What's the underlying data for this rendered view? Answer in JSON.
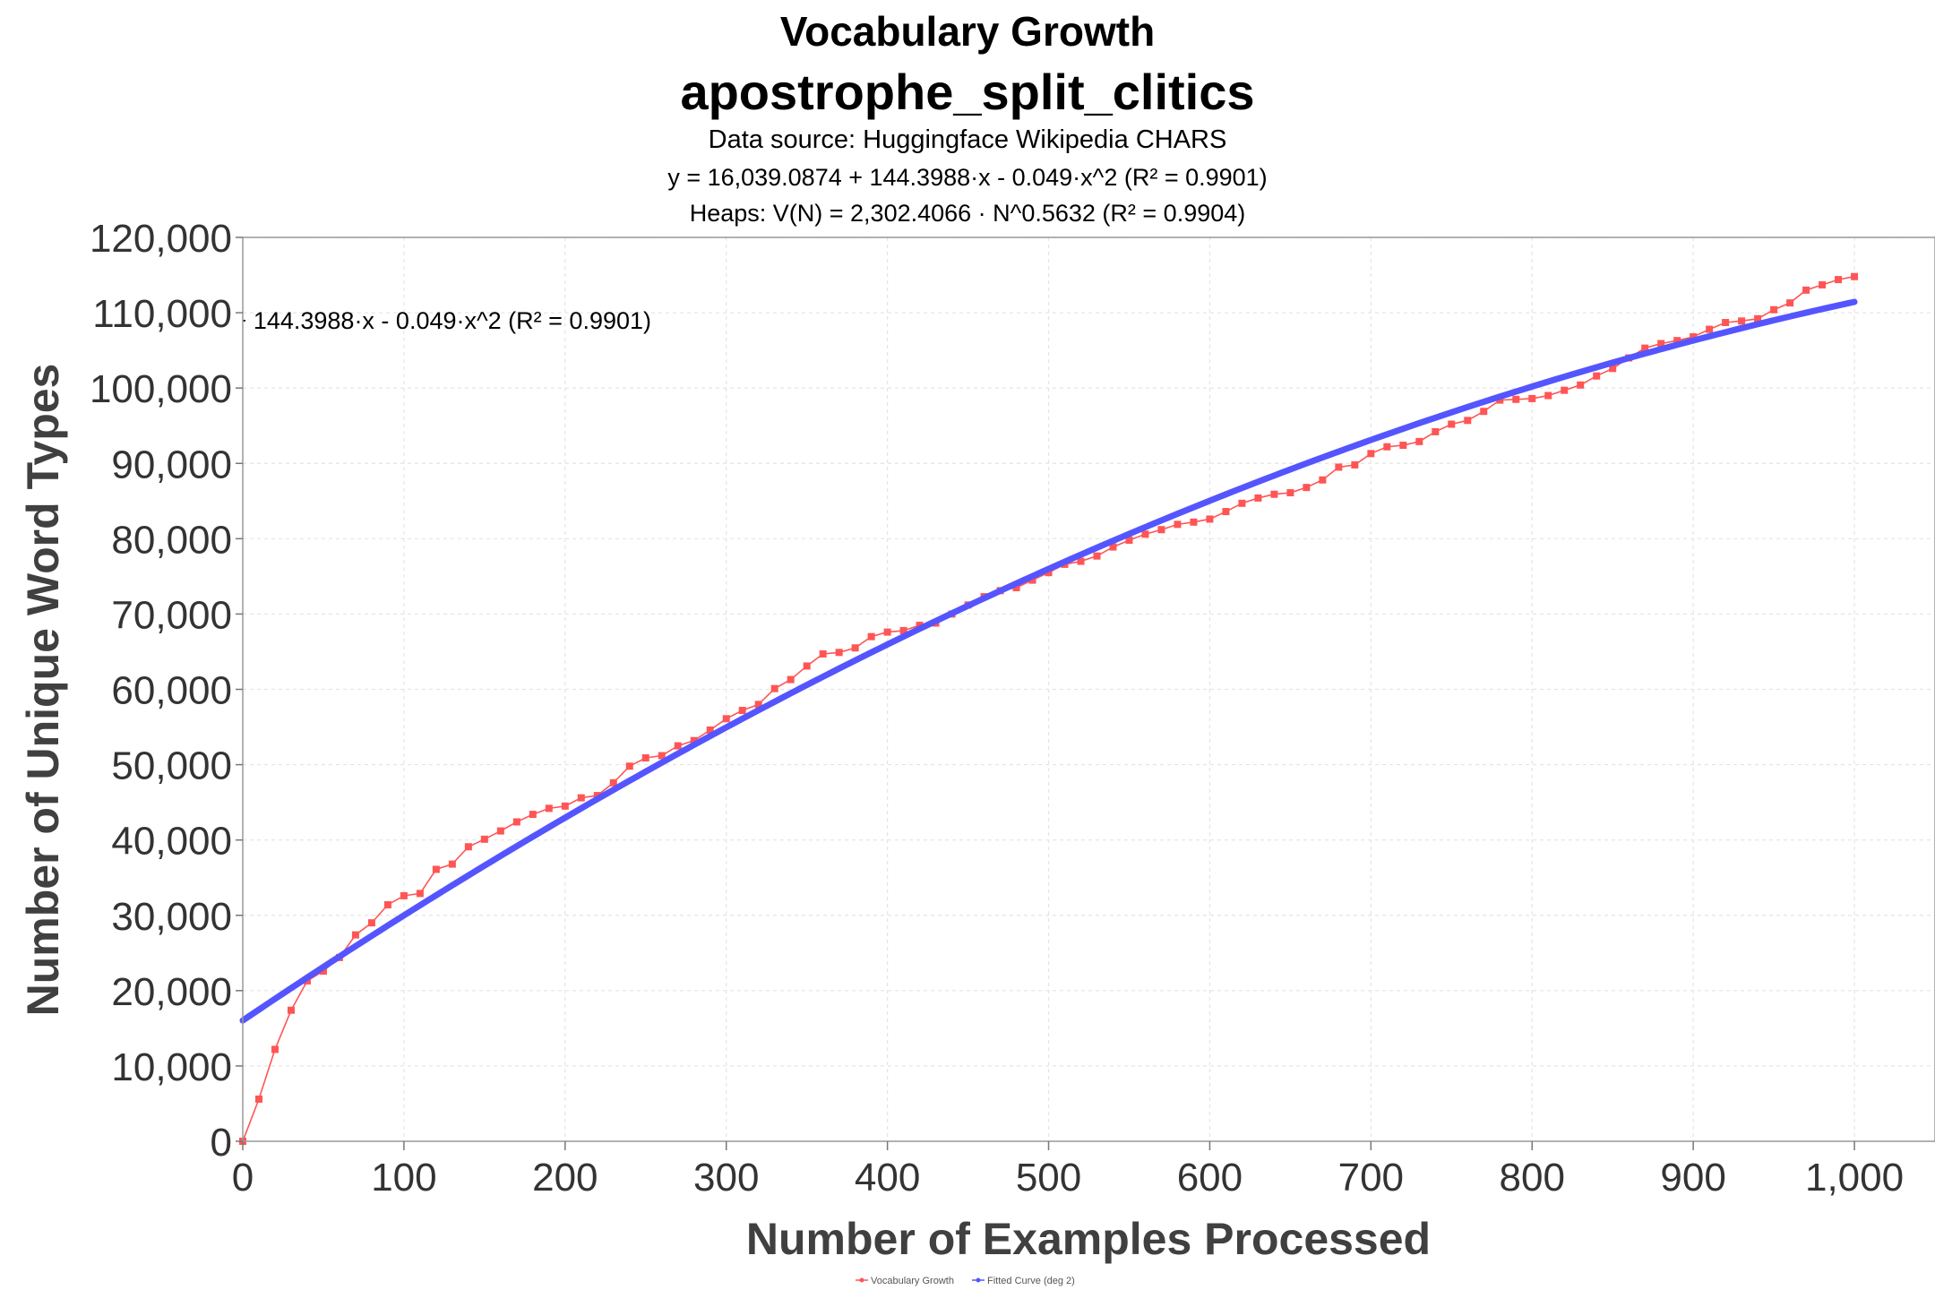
{
  "chart_data": {
    "type": "line",
    "title": "Vocabulary Growth",
    "subtitle": "apostrophe_split_clitics",
    "source": "Data source: Huggingface Wikipedia CHARS",
    "equation_poly": "y = 16,039.0874 + 144.3988·x - 0.049·x^2    (R² = 0.9901)",
    "equation_heaps": "Heaps: V(N) = 2,302.4066 · N^0.5632    (R² = 0.9904)",
    "annotation": "y = 16,039.0874 + 144.3988·x - 0.049·x^2    (R² = 0.9901)",
    "xlabel": "Number of Examples Processed",
    "ylabel": "Number of Unique Word Types",
    "xlim": [
      0,
      1050
    ],
    "ylim": [
      0,
      120000
    ],
    "x_ticks": [
      0,
      100,
      200,
      300,
      400,
      500,
      600,
      700,
      800,
      900,
      1000
    ],
    "x_tick_labels": [
      "0",
      "100",
      "200",
      "300",
      "400",
      "500",
      "600",
      "700",
      "800",
      "900",
      "1,000"
    ],
    "y_ticks": [
      0,
      10000,
      20000,
      30000,
      40000,
      50000,
      60000,
      70000,
      80000,
      90000,
      100000,
      110000,
      120000
    ],
    "y_tick_labels": [
      "0",
      "10,000",
      "20,000",
      "30,000",
      "40,000",
      "50,000",
      "60,000",
      "70,000",
      "80,000",
      "90,000",
      "100,000",
      "110,000",
      "120,000"
    ],
    "grid": true,
    "legend_position": "bottom-center",
    "series": [
      {
        "name": "Vocabulary Growth",
        "color": "#ff5555",
        "x": [
          0,
          10,
          20,
          30,
          40,
          50,
          60,
          70,
          80,
          90,
          100,
          110,
          120,
          130,
          140,
          150,
          160,
          170,
          180,
          190,
          200,
          210,
          220,
          230,
          240,
          250,
          260,
          270,
          280,
          290,
          300,
          310,
          320,
          330,
          340,
          350,
          360,
          370,
          380,
          390,
          400,
          410,
          420,
          430,
          440,
          450,
          460,
          470,
          480,
          490,
          500,
          510,
          520,
          530,
          540,
          550,
          560,
          570,
          580,
          590,
          600,
          610,
          620,
          630,
          640,
          650,
          660,
          670,
          680,
          690,
          700,
          710,
          720,
          730,
          740,
          750,
          760,
          770,
          780,
          790,
          800,
          810,
          820,
          830,
          840,
          850,
          860,
          870,
          880,
          890,
          900,
          910,
          920,
          930,
          940,
          950,
          960,
          970,
          980,
          990,
          1000
        ],
        "y": [
          0,
          5600,
          12200,
          17400,
          21300,
          22600,
          24400,
          27400,
          29000,
          31400,
          32600,
          32900,
          36100,
          36800,
          39100,
          40100,
          41200,
          42400,
          43400,
          44200,
          44500,
          45600,
          45900,
          47600,
          49800,
          50900,
          51200,
          52500,
          53200,
          54600,
          56100,
          57200,
          58000,
          60100,
          61300,
          63100,
          64700,
          64900,
          65500,
          67000,
          67600,
          67800,
          68500,
          68800,
          70000,
          71200,
          72300,
          73100,
          73500,
          74500,
          75500,
          76600,
          77000,
          77700,
          78900,
          79800,
          80600,
          81200,
          81900,
          82200,
          82600,
          83600,
          84700,
          85400,
          85900,
          86100,
          86800,
          87800,
          89500,
          89800,
          91300,
          92200,
          92400,
          92900,
          94200,
          95200,
          95700,
          96900,
          98400,
          98500,
          98600,
          99000,
          99700,
          100400,
          101600,
          102600,
          104000,
          105300,
          105900,
          106300,
          106800,
          107800,
          108700,
          108900,
          109200,
          110400,
          111300,
          113000,
          113700,
          114400,
          114800
        ]
      },
      {
        "name": "Fitted Curve (deg 2)",
        "color": "#5555ff",
        "coefficients": [
          16039.0874,
          144.3988,
          -0.049
        ],
        "x_range": [
          0,
          1000
        ]
      }
    ]
  }
}
